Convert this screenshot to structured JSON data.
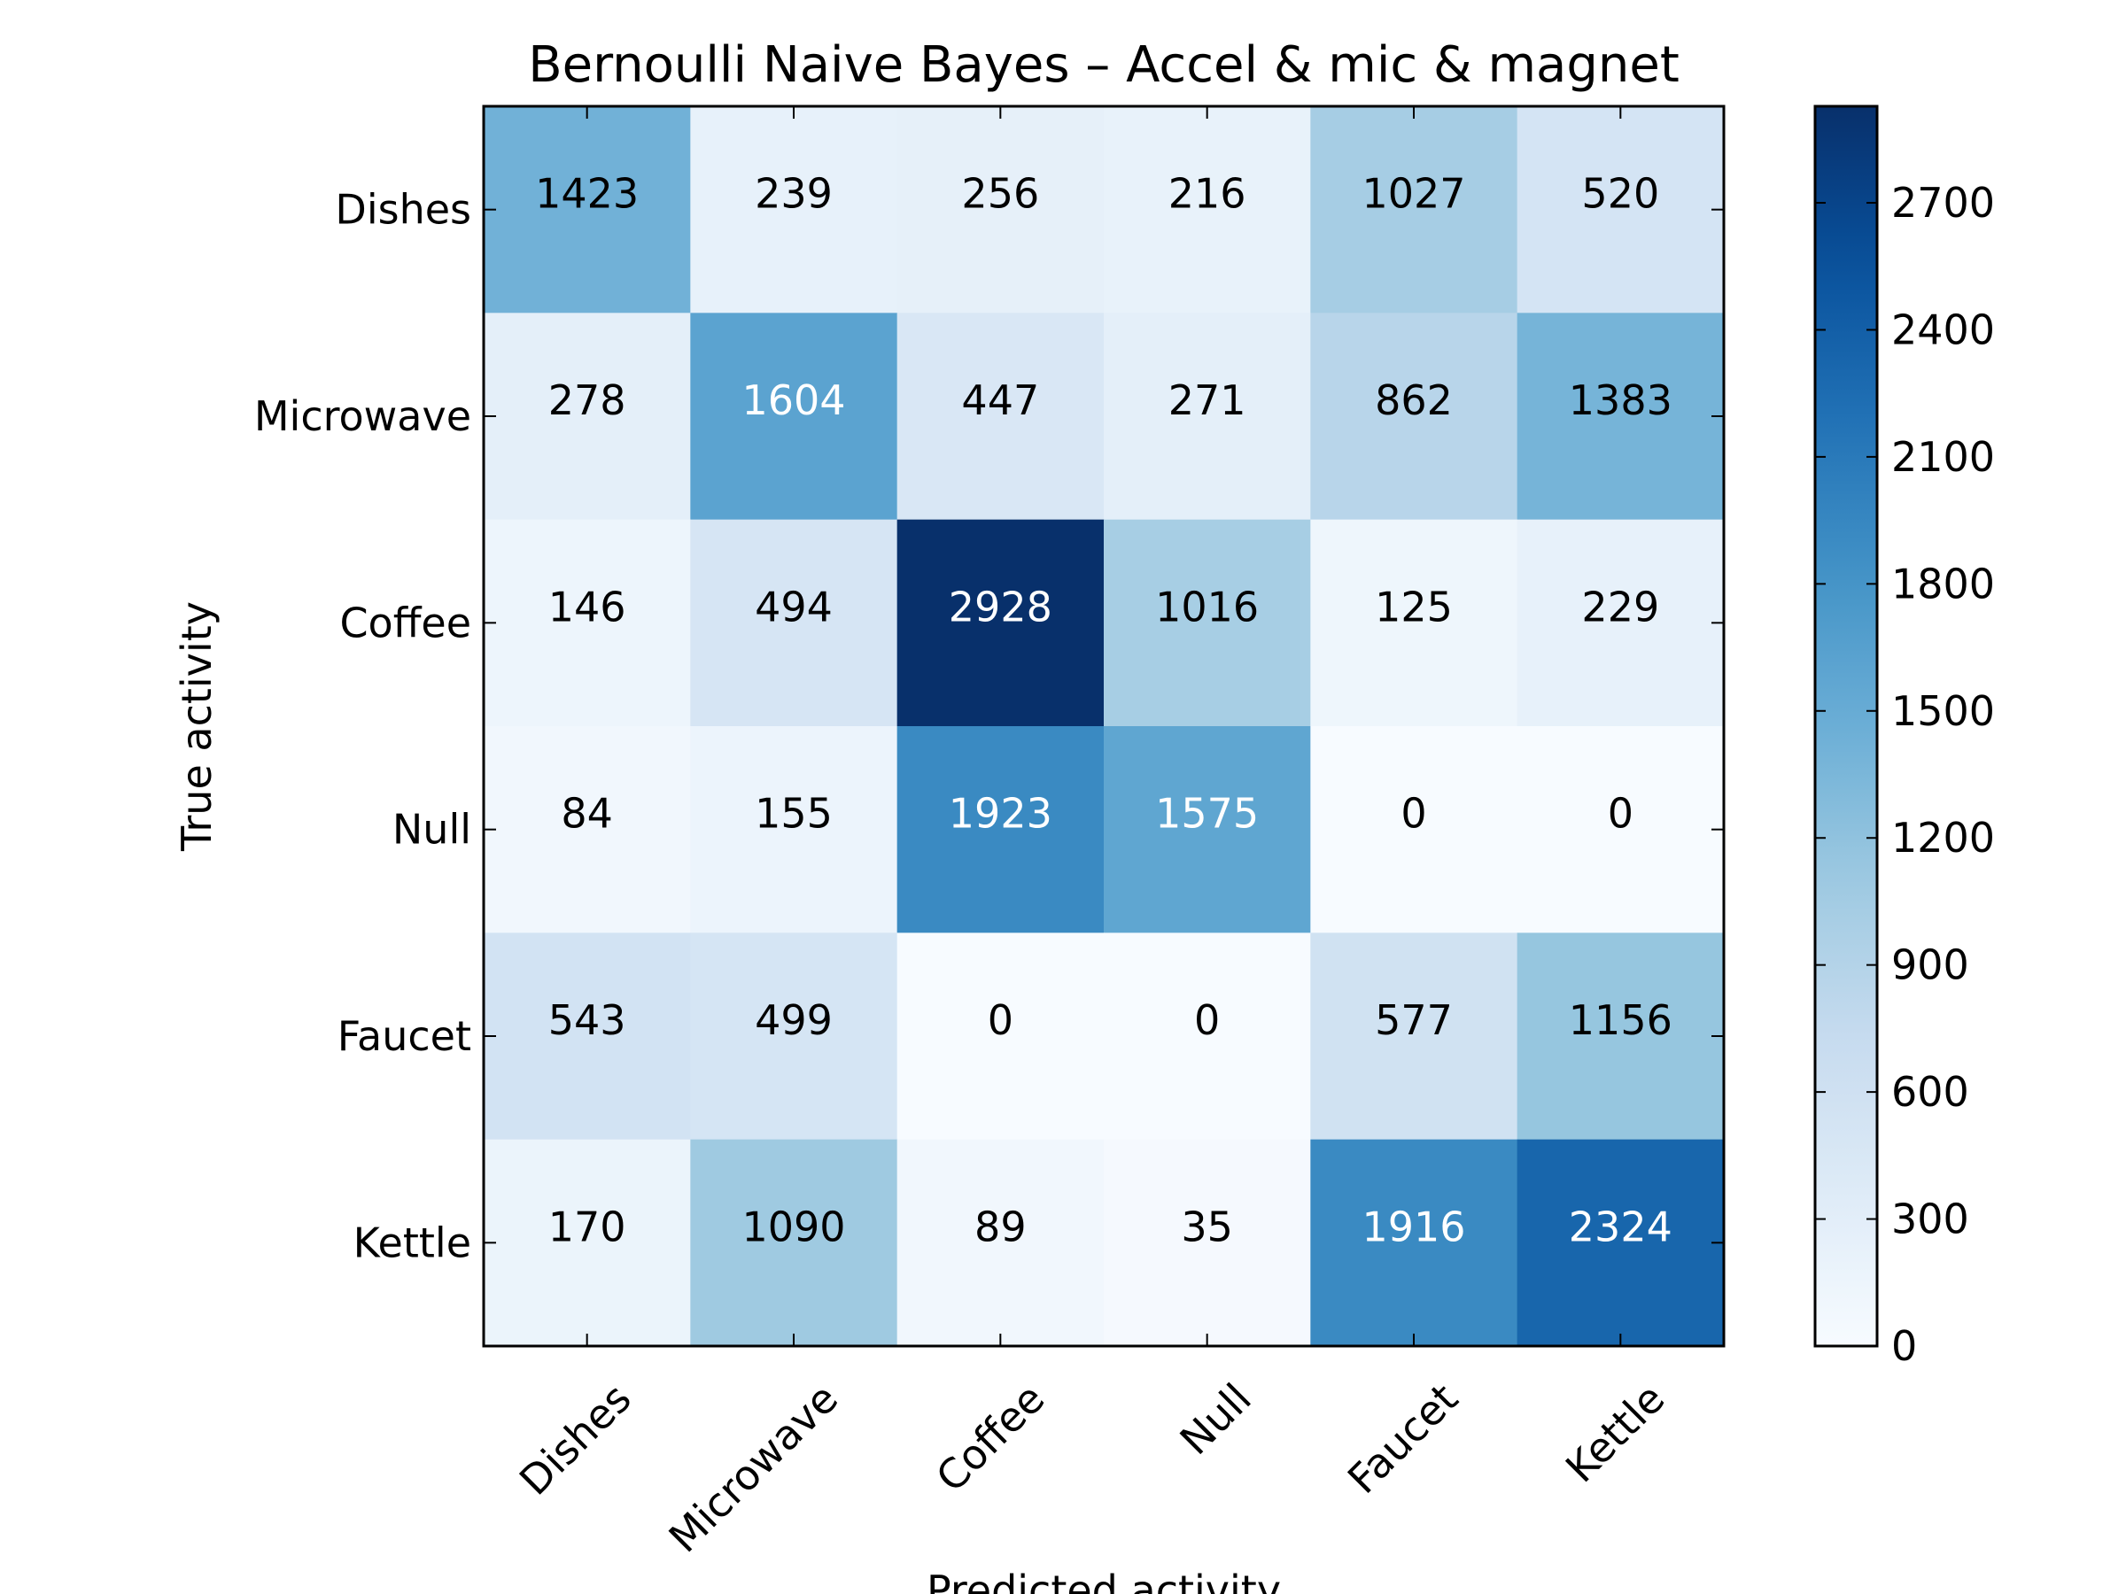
{
  "chart_data": {
    "type": "heatmap",
    "title": "Bernoulli Naive Bayes – Accel & mic & magnet",
    "xlabel": "Predicted activity",
    "ylabel": "True activity",
    "x_categories": [
      "Dishes",
      "Microwave",
      "Coffee",
      "Null",
      "Faucet",
      "Kettle"
    ],
    "y_categories": [
      "Dishes",
      "Microwave",
      "Coffee",
      "Null",
      "Faucet",
      "Kettle"
    ],
    "values": [
      [
        1423,
        239,
        256,
        216,
        1027,
        520
      ],
      [
        278,
        1604,
        447,
        271,
        862,
        1383
      ],
      [
        146,
        494,
        2928,
        1016,
        125,
        229
      ],
      [
        84,
        155,
        1923,
        1575,
        0,
        0
      ],
      [
        543,
        499,
        0,
        0,
        577,
        1156
      ],
      [
        170,
        1090,
        89,
        35,
        1916,
        2324
      ]
    ],
    "colorbar": {
      "colormap": "Blues",
      "min": 0,
      "max": 2928,
      "ticks": [
        0,
        300,
        600,
        900,
        1200,
        1500,
        1800,
        2100,
        2400,
        2700
      ]
    },
    "grid": false
  }
}
